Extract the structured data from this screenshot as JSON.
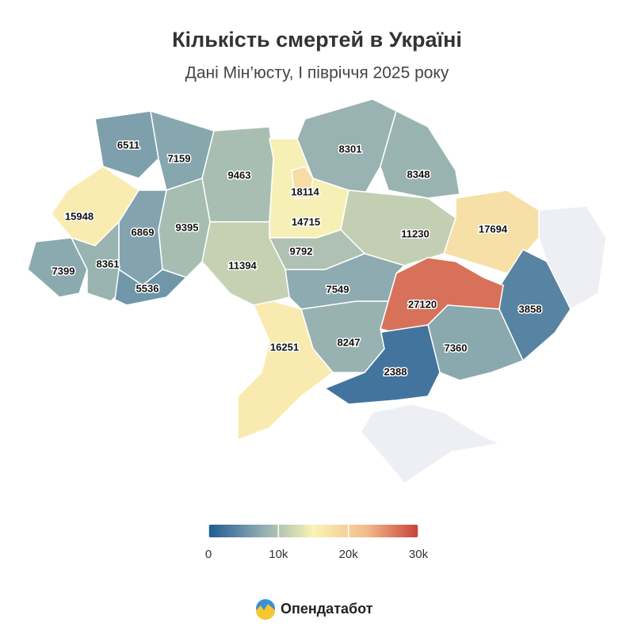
{
  "map": {
    "title": "Кількість смертей в Україні",
    "subtitle": "Дані Мін’юсту, І півріччя 2025 року",
    "values": [
      6511,
      7159,
      9463,
      14715,
      18114,
      8301,
      8348,
      11230,
      17694,
      3858,
      27120,
      7360,
      2388,
      8247,
      7549,
      9792,
      11394,
      16251,
      9395,
      6869,
      15948,
      7399,
      8361,
      5536
    ],
    "colorscale": [
      "#1f5a94",
      "#8cabb0",
      "#fbf3b6",
      "#f1bd8c",
      "#c8413a"
    ],
    "lim": [
      0,
      30000
    ],
    "ticks": [
      0,
      {
        "value": 10000,
        "label": "10k"
      },
      {
        "value": 20000,
        "label": "20k"
      },
      {
        "value": 30000,
        "label": "30k"
      }
    ],
    "brand": "Опендатабот"
  }
}
